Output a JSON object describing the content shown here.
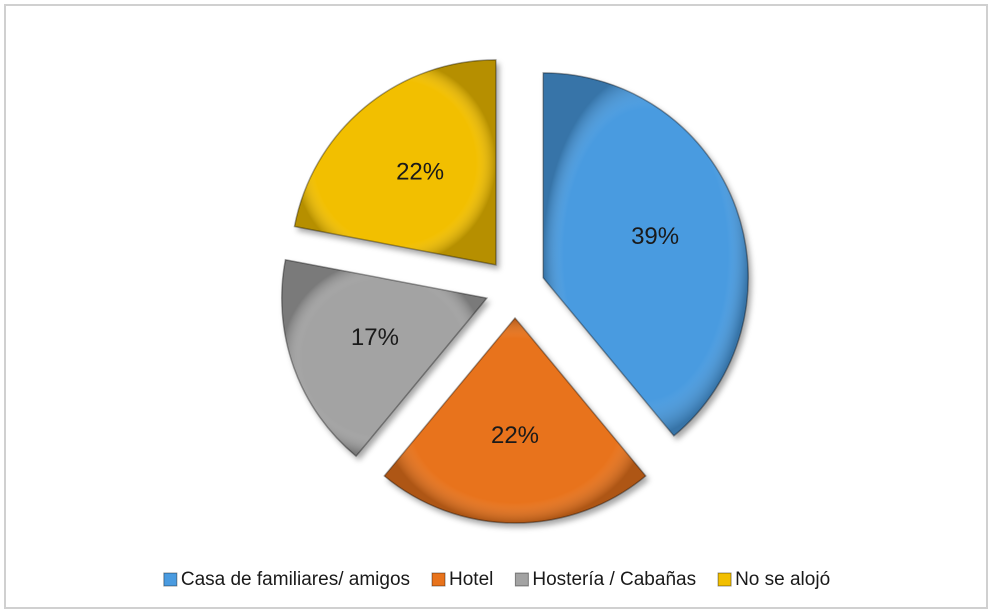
{
  "chart_data": {
    "type": "pie",
    "categories": [
      "Casa de familiares/ amigos",
      "Hotel",
      "Hostería / Cabañas",
      "No se alojó"
    ],
    "values": [
      39,
      22,
      17,
      22
    ],
    "value_labels": [
      "39%",
      "22%",
      "17%",
      "22%"
    ],
    "colors": [
      "#4a9be0",
      "#e8731c",
      "#a3a3a3",
      "#f2bf00"
    ],
    "legend": "bottom"
  }
}
